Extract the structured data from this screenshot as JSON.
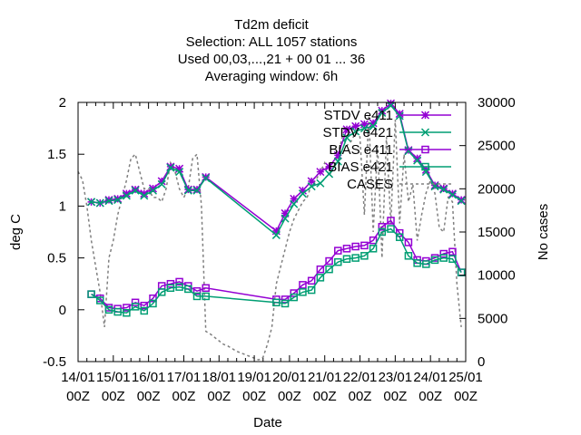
{
  "chart_data": {
    "type": "line",
    "title_lines": [
      "Td2m deficit",
      "Selection: ALL   1057 stations",
      "Used  00,03,...,21  + 00 01 ... 36",
      "Averaging window:  6h"
    ],
    "xlabel": "Date",
    "ylabel": "deg C",
    "y2label": "No cases",
    "x_ticks": [
      [
        "14/01",
        "00Z"
      ],
      [
        "15/01",
        "00Z"
      ],
      [
        "16/01",
        "00Z"
      ],
      [
        "17/01",
        "00Z"
      ],
      [
        "18/01",
        "00Z"
      ],
      [
        "19/01",
        "00Z"
      ],
      [
        "20/01",
        "00Z"
      ],
      [
        "21/01",
        "00Z"
      ],
      [
        "22/01",
        "00Z"
      ],
      [
        "23/01",
        "00Z"
      ],
      [
        "24/01",
        "00Z"
      ],
      [
        "25/01",
        "00Z"
      ]
    ],
    "xlim": [
      0,
      11
    ],
    "ylim": [
      -0.5,
      2
    ],
    "y_ticks": [
      "-0.5",
      "0",
      "0.5",
      "1",
      "1.5",
      "2"
    ],
    "y2lim": [
      0,
      30000
    ],
    "y2_ticks": [
      "0",
      "5000",
      "10000",
      "15000",
      "20000",
      "25000",
      "30000"
    ],
    "grid": false,
    "legend_position": "top-right",
    "series": [
      {
        "name": "STDV e411",
        "color": "#9400d3",
        "marker": "star",
        "x": [
          0.375,
          0.625,
          0.875,
          1.125,
          1.375,
          1.625,
          1.875,
          2.125,
          2.375,
          2.625,
          2.875,
          3.125,
          3.375,
          3.625,
          5.625,
          5.875,
          6.125,
          6.375,
          6.625,
          6.875,
          7.125,
          7.375,
          7.625,
          7.875,
          8.125,
          8.375,
          8.625,
          8.875,
          9.125,
          9.375,
          9.625,
          9.875,
          10.125,
          10.375,
          10.625,
          10.875
        ],
        "y": [
          1.04,
          1.03,
          1.06,
          1.07,
          1.12,
          1.16,
          1.12,
          1.17,
          1.24,
          1.38,
          1.36,
          1.16,
          1.16,
          1.28,
          0.76,
          0.93,
          1.07,
          1.15,
          1.24,
          1.33,
          1.38,
          1.49,
          1.74,
          1.77,
          1.79,
          1.8,
          1.92,
          1.99,
          1.89,
          1.54,
          1.46,
          1.35,
          1.2,
          1.17,
          1.12,
          1.06
        ]
      },
      {
        "name": "STDV e421",
        "color": "#009e73",
        "marker": "cross",
        "x": [
          0.375,
          0.625,
          0.875,
          1.125,
          1.375,
          1.625,
          1.875,
          2.125,
          2.375,
          2.625,
          2.875,
          3.125,
          3.375,
          3.625,
          5.625,
          5.875,
          6.125,
          6.375,
          6.625,
          6.875,
          7.125,
          7.375,
          7.625,
          7.875,
          8.125,
          8.375,
          8.625,
          8.875,
          9.125,
          9.375,
          9.625,
          9.875,
          10.125,
          10.375,
          10.625,
          10.875
        ],
        "y": [
          1.04,
          1.03,
          1.05,
          1.06,
          1.1,
          1.15,
          1.1,
          1.15,
          1.21,
          1.37,
          1.33,
          1.15,
          1.15,
          1.27,
          0.72,
          0.88,
          1.02,
          1.12,
          1.19,
          1.22,
          1.31,
          1.43,
          1.66,
          1.72,
          1.75,
          1.77,
          1.9,
          1.97,
          1.87,
          1.53,
          1.44,
          1.33,
          1.19,
          1.16,
          1.11,
          1.05
        ]
      },
      {
        "name": "BIAS e411",
        "color": "#9400d3",
        "marker": "square",
        "x": [
          0.375,
          0.625,
          0.875,
          1.125,
          1.375,
          1.625,
          1.875,
          2.125,
          2.375,
          2.625,
          2.875,
          3.125,
          3.375,
          3.625,
          5.625,
          5.875,
          6.125,
          6.375,
          6.625,
          6.875,
          7.125,
          7.375,
          7.625,
          7.875,
          8.125,
          8.375,
          8.625,
          8.875,
          9.125,
          9.375,
          9.625,
          9.875,
          10.125,
          10.375,
          10.625,
          10.875
        ],
        "y": [
          0.15,
          0.11,
          0.02,
          0.01,
          0.02,
          0.07,
          0.04,
          0.11,
          0.23,
          0.25,
          0.27,
          0.23,
          0.18,
          0.21,
          0.1,
          0.1,
          0.16,
          0.24,
          0.28,
          0.39,
          0.47,
          0.57,
          0.59,
          0.61,
          0.62,
          0.67,
          0.8,
          0.86,
          0.74,
          0.65,
          0.48,
          0.47,
          0.5,
          0.54,
          0.56,
          0.36
        ]
      },
      {
        "name": "BIAS e421",
        "color": "#009e73",
        "marker": "square",
        "x": [
          0.375,
          0.625,
          0.875,
          1.125,
          1.375,
          1.625,
          1.875,
          2.125,
          2.375,
          2.625,
          2.875,
          3.125,
          3.375,
          3.625,
          5.625,
          5.875,
          6.125,
          6.375,
          6.625,
          6.875,
          7.125,
          7.375,
          7.625,
          7.875,
          8.125,
          8.375,
          8.625,
          8.875,
          9.125,
          9.375,
          9.625,
          9.875,
          10.125,
          10.375,
          10.625,
          10.875
        ],
        "y": [
          0.15,
          0.09,
          0.0,
          -0.02,
          -0.03,
          0.03,
          -0.01,
          0.06,
          0.17,
          0.21,
          0.22,
          0.2,
          0.13,
          0.13,
          0.07,
          0.06,
          0.12,
          0.17,
          0.19,
          0.31,
          0.39,
          0.46,
          0.49,
          0.5,
          0.52,
          0.59,
          0.75,
          0.78,
          0.7,
          0.52,
          0.45,
          0.44,
          0.48,
          0.5,
          0.49,
          0.36
        ]
      },
      {
        "name": "CASES",
        "color": "#808080",
        "marker": "none",
        "dashed": true,
        "axis": "y2",
        "x": [
          0.0,
          0.125,
          0.25,
          0.375,
          0.5,
          0.625,
          0.75,
          0.875,
          1.0,
          1.125,
          1.25,
          1.375,
          1.5,
          1.625,
          1.75,
          1.875,
          2.0,
          2.125,
          2.25,
          2.375,
          2.5,
          2.625,
          2.75,
          2.875,
          3.0,
          3.125,
          3.25,
          3.375,
          3.5,
          3.625,
          3.75,
          3.875,
          4.0,
          4.125,
          4.25,
          4.375,
          4.5,
          4.625,
          4.75,
          4.875,
          5.0,
          5.125,
          5.25,
          5.375,
          5.5,
          5.625,
          5.75,
          5.875,
          6.0,
          6.125,
          6.25,
          6.375,
          6.5,
          6.625,
          6.75,
          6.875,
          7.0,
          7.125,
          7.25,
          7.375,
          7.5,
          7.625,
          7.75,
          7.875,
          8.0,
          8.125,
          8.25,
          8.375,
          8.5,
          8.625,
          8.75,
          8.875,
          9.0,
          9.125,
          9.25,
          9.375,
          9.5,
          9.625,
          9.75,
          9.875,
          10.0,
          10.125,
          10.25,
          10.375,
          10.5,
          10.625,
          10.75,
          10.875
        ],
        "y": [
          22000,
          21000,
          18000,
          14000,
          11000,
          8000,
          4000,
          12000,
          14000,
          17000,
          19000,
          21000,
          23500,
          24000,
          22000,
          20000,
          20000,
          19000,
          19000,
          18500,
          20000,
          23000,
          22000,
          20000,
          19000,
          20000,
          23500,
          24000,
          18000,
          3500,
          3200,
          2800,
          2400,
          2000,
          1800,
          1500,
          1200,
          1000,
          800,
          600,
          400,
          200,
          500,
          2000,
          4000,
          9000,
          11000,
          13000,
          15000,
          16500,
          17500,
          18500,
          19000,
          20500,
          21000,
          22000,
          23000,
          21500,
          22500,
          24000,
          26000,
          25000,
          25500,
          26500,
          26000,
          17000,
          28500,
          15000,
          25000,
          12000,
          26000,
          16000,
          28000,
          16000,
          24000,
          18500,
          20500,
          14000,
          17000,
          19500,
          21000,
          19500,
          15500,
          15000,
          19000,
          18500,
          9000,
          4000
        ]
      }
    ]
  }
}
